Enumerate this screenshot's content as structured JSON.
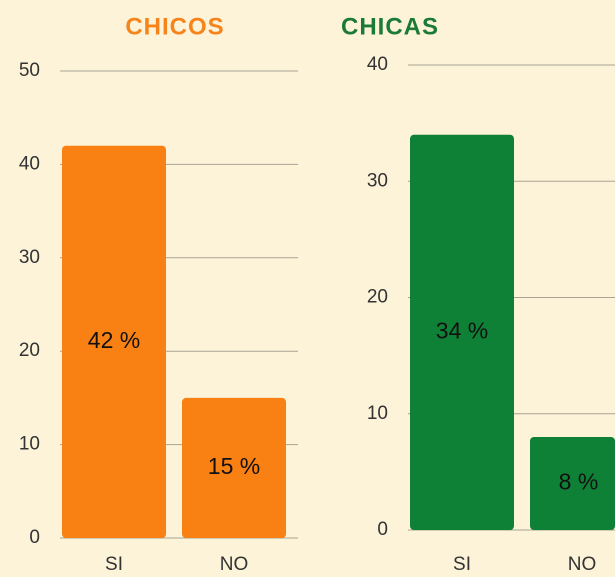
{
  "chart_data": [
    {
      "type": "bar",
      "title": "CHICOS",
      "title_color": "#f7841a",
      "categories": [
        "SI",
        "NO"
      ],
      "values": [
        42,
        15
      ],
      "value_labels": [
        "42 %",
        "15 %"
      ],
      "color": "#f98113",
      "ylim": [
        0,
        50
      ],
      "yticks": [
        0,
        10,
        20,
        30,
        40,
        50
      ],
      "grid": true
    },
    {
      "type": "bar",
      "title": "CHICAS",
      "title_color": "#1a7a36",
      "categories": [
        "SI",
        "NO"
      ],
      "values": [
        34,
        8
      ],
      "value_labels": [
        "34 %",
        "8 %"
      ],
      "color": "#0f8136",
      "ylim": [
        0,
        40
      ],
      "yticks": [
        0,
        10,
        20,
        30,
        40
      ],
      "grid": true
    }
  ]
}
